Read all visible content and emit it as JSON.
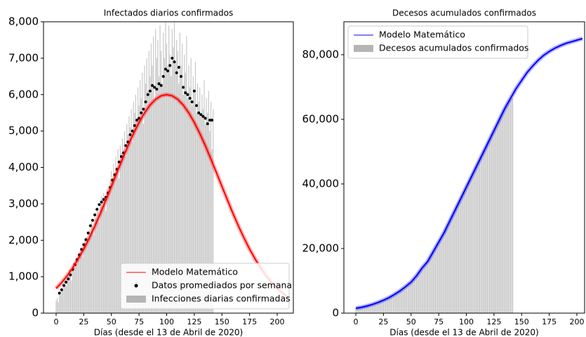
{
  "chart_data": [
    {
      "type": "combo",
      "title": "Infectados diarios confirmados",
      "xlabel": "Días (desde el 13 de Abril de 2020)",
      "xlim": [
        -11.4,
        214.6
      ],
      "xticks": [
        0,
        25,
        50,
        75,
        100,
        125,
        150,
        175,
        200
      ],
      "ylim": [
        0,
        8000
      ],
      "yticks": [
        0,
        {
          "value": 1000,
          "label": "1,000"
        },
        {
          "value": 2000,
          "label": "2,000"
        },
        {
          "value": 3000,
          "label": "3,000"
        },
        {
          "value": 4000,
          "label": "4,000"
        },
        {
          "value": 5000,
          "label": "5,000"
        },
        {
          "value": 6000,
          "label": "6,000"
        },
        {
          "value": 7000,
          "label": "7,000"
        },
        {
          "value": 8000,
          "label": "8,000"
        }
      ],
      "legend": "lower right",
      "series": [
        {
          "name": "Modelo Matemático",
          "kind": "line",
          "color": "#ff0000",
          "x": [
            0,
            5,
            10,
            15,
            20,
            25,
            30,
            35,
            40,
            45,
            50,
            55,
            60,
            65,
            70,
            75,
            80,
            85,
            90,
            95,
            100,
            105,
            110,
            115,
            120,
            125,
            130,
            135,
            140,
            145,
            150,
            155,
            160,
            165,
            170,
            175,
            180,
            185,
            190,
            195,
            200,
            205,
            210
          ],
          "values": [
            678,
            839,
            1026,
            1242,
            1487,
            1760,
            2062,
            2388,
            2736,
            3103,
            3479,
            3860,
            4232,
            4595,
            4931,
            5235,
            5499,
            5713,
            5871,
            5967,
            6000,
            5967,
            5871,
            5713,
            5499,
            5235,
            4931,
            4595,
            4232,
            3860,
            3479,
            3103,
            2736,
            2388,
            2062,
            1760,
            1487,
            1242,
            1026,
            839,
            678,
            542,
            429
          ]
        },
        {
          "name": "Datos promediados por semana",
          "kind": "points",
          "color": "#000000",
          "x": [
            3,
            5,
            7,
            9,
            11,
            13,
            15,
            17,
            19,
            21,
            23,
            25,
            27,
            29,
            31,
            33,
            35,
            37,
            39,
            41,
            43,
            45,
            47,
            49,
            51,
            53,
            55,
            57,
            59,
            61,
            63,
            65,
            67,
            69,
            71,
            73,
            75,
            77,
            79,
            81,
            83,
            85,
            87,
            89,
            91,
            93,
            95,
            97,
            99,
            101,
            103,
            105,
            107,
            109,
            111,
            113,
            115,
            117,
            119,
            121,
            123,
            125,
            127,
            129,
            131,
            133,
            135,
            137,
            139,
            141
          ],
          "values": [
            550,
            640,
            760,
            850,
            940,
            1050,
            1200,
            1330,
            1470,
            1600,
            1750,
            1880,
            2020,
            2200,
            2400,
            2550,
            2700,
            2850,
            2980,
            3050,
            3120,
            3180,
            3300,
            3450,
            3650,
            3800,
            3950,
            4150,
            4300,
            4400,
            4600,
            4700,
            4900,
            5000,
            5150,
            5300,
            5350,
            5500,
            5600,
            5800,
            6000,
            6100,
            6250,
            6200,
            6150,
            6300,
            6250,
            6500,
            6700,
            6650,
            6800,
            7000,
            6900,
            6600,
            6750,
            6500,
            6200,
            6050,
            6000,
            5900,
            5800,
            6100,
            5700,
            5500,
            5450,
            5400,
            5350,
            5200,
            5300,
            5300
          ]
        },
        {
          "name": "Infecciones diarias confirmadas",
          "kind": "bars",
          "color": "#c8c8c8",
          "x": [
            0,
            1,
            2,
            3,
            4,
            5,
            6,
            7,
            8,
            9,
            10,
            11,
            12,
            13,
            14,
            15,
            16,
            17,
            18,
            19,
            20,
            21,
            22,
            23,
            24,
            25,
            26,
            27,
            28,
            29,
            30,
            31,
            32,
            33,
            34,
            35,
            36,
            37,
            38,
            39,
            40,
            41,
            42,
            43,
            44,
            45,
            46,
            47,
            48,
            49,
            50,
            51,
            52,
            53,
            54,
            55,
            56,
            57,
            58,
            59,
            60,
            61,
            62,
            63,
            64,
            65,
            66,
            67,
            68,
            69,
            70,
            71,
            72,
            73,
            74,
            75,
            76,
            77,
            78,
            79,
            80,
            81,
            82,
            83,
            84,
            85,
            86,
            87,
            88,
            89,
            90,
            91,
            92,
            93,
            94,
            95,
            96,
            97,
            98,
            99,
            100,
            101,
            102,
            103,
            104,
            105,
            106,
            107,
            108,
            109,
            110,
            111,
            112,
            113,
            114,
            115,
            116,
            117,
            118,
            119,
            120,
            121,
            122,
            123,
            124,
            125,
            126,
            127,
            128,
            129,
            130,
            131,
            132,
            133,
            134,
            135,
            136,
            137,
            138,
            139,
            140,
            141,
            142
          ],
          "values": [
            350,
            420,
            300,
            600,
            500,
            700,
            650,
            800,
            900,
            750,
            1000,
            950,
            1200,
            1100,
            900,
            1300,
            1400,
            1250,
            1500,
            1350,
            1600,
            1450,
            1700,
            1800,
            1550,
            1900,
            2000,
            1850,
            2100,
            1950,
            2300,
            2200,
            2500,
            2400,
            2150,
            2700,
            2600,
            2900,
            2800,
            2500,
            3000,
            3200,
            2900,
            3300,
            3100,
            2800,
            3400,
            3500,
            3300,
            3700,
            3900,
            3600,
            4100,
            3800,
            4300,
            4000,
            4500,
            3700,
            4600,
            4400,
            4800,
            4500,
            5000,
            4300,
            5200,
            4900,
            5400,
            5100,
            5600,
            4700,
            5800,
            5500,
            6000,
            5300,
            6200,
            5700,
            6400,
            5900,
            6600,
            5200,
            6800,
            6300,
            7000,
            6100,
            7200,
            6500,
            7400,
            6800,
            7600,
            5800,
            7800,
            7000,
            7500,
            6500,
            7900,
            7200,
            6300,
            7700,
            7000,
            8000,
            7400,
            6800,
            7900,
            7100,
            6500,
            7800,
            7300,
            8000,
            6900,
            7500,
            7200,
            6300,
            7700,
            6800,
            7400,
            6000,
            7100,
            6600,
            7600,
            5900,
            6800,
            6200,
            7000,
            5700,
            6500,
            6100,
            6900,
            5500,
            6300,
            5800,
            6200,
            5400,
            6000,
            5600,
            6400,
            5200,
            5900,
            5500,
            6100,
            5000,
            5800,
            4500,
            5600
          ]
        }
      ]
    },
    {
      "type": "combo",
      "title": "Decesos acumulados confirmados",
      "xlabel": "Días (desde el 13 de Abril de 2020)",
      "xlim": [
        -10.8,
        207
      ],
      "xticks": [
        0,
        25,
        50,
        75,
        100,
        125,
        150,
        175,
        200
      ],
      "ylim": [
        0,
        90200
      ],
      "yticks": [
        0,
        {
          "value": 20000,
          "label": "20,000"
        },
        {
          "value": 40000,
          "label": "40,000"
        },
        {
          "value": 60000,
          "label": "60,000"
        },
        {
          "value": 80000,
          "label": "80,000"
        }
      ],
      "legend": "upper left",
      "series": [
        {
          "name": "Modelo Matemático",
          "kind": "line",
          "color": "#0000ff",
          "x": [
            0,
            5,
            10,
            15,
            20,
            25,
            30,
            35,
            40,
            45,
            50,
            55,
            60,
            65,
            70,
            75,
            80,
            85,
            90,
            95,
            100,
            105,
            110,
            115,
            120,
            125,
            130,
            135,
            140,
            145,
            150,
            155,
            160,
            165,
            170,
            175,
            180,
            185,
            190,
            195,
            200,
            205
          ],
          "values": [
            1500,
            1800,
            2200,
            2700,
            3300,
            4000,
            4800,
            5800,
            6900,
            8200,
            9600,
            11600,
            14000,
            16000,
            19000,
            22000,
            25000,
            28500,
            32000,
            35500,
            39000,
            42500,
            46000,
            49500,
            53000,
            56500,
            60000,
            63500,
            66500,
            69500,
            72000,
            74500,
            76500,
            78300,
            79800,
            81000,
            82000,
            82800,
            83500,
            84000,
            84500,
            85000
          ]
        },
        {
          "name": "Decesos acumulados confirmados",
          "kind": "bars",
          "color": "#c8c8c8",
          "x": [
            0,
            1,
            2,
            3,
            4,
            5,
            6,
            7,
            8,
            9,
            10,
            11,
            12,
            13,
            14,
            15,
            16,
            17,
            18,
            19,
            20,
            21,
            22,
            23,
            24,
            25,
            26,
            27,
            28,
            29,
            30,
            31,
            32,
            33,
            34,
            35,
            36,
            37,
            38,
            39,
            40,
            41,
            42,
            43,
            44,
            45,
            46,
            47,
            48,
            49,
            50,
            51,
            52,
            53,
            54,
            55,
            56,
            57,
            58,
            59,
            60,
            61,
            62,
            63,
            64,
            65,
            66,
            67,
            68,
            69,
            70,
            71,
            72,
            73,
            74,
            75,
            76,
            77,
            78,
            79,
            80,
            81,
            82,
            83,
            84,
            85,
            86,
            87,
            88,
            89,
            90,
            91,
            92,
            93,
            94,
            95,
            96,
            97,
            98,
            99,
            100,
            101,
            102,
            103,
            104,
            105,
            106,
            107,
            108,
            109,
            110,
            111,
            112,
            113,
            114,
            115,
            116,
            117,
            118,
            119,
            120,
            121,
            122,
            123,
            124,
            125,
            126,
            127,
            128,
            129,
            130,
            131,
            132,
            133,
            134,
            135,
            136,
            137,
            138,
            139,
            140,
            141,
            142
          ],
          "values": [
            1400,
            1450,
            1500,
            1560,
            1620,
            1700,
            1780,
            1860,
            1940,
            2030,
            2120,
            2210,
            2300,
            2400,
            2500,
            2620,
            2740,
            2860,
            2980,
            3110,
            3240,
            3380,
            3520,
            3660,
            3820,
            3980,
            4140,
            4300,
            4480,
            4660,
            4840,
            5040,
            5240,
            5440,
            5660,
            5880,
            6100,
            6320,
            6560,
            6800,
            7050,
            7300,
            7560,
            7830,
            8100,
            8380,
            8660,
            8950,
            9250,
            9560,
            9880,
            10200,
            10550,
            10900,
            11300,
            11700,
            12100,
            12550,
            13000,
            13500,
            14000,
            14400,
            14900,
            15400,
            15900,
            16400,
            17000,
            17600,
            18200,
            18800,
            19400,
            20000,
            20600,
            21200,
            21800,
            22400,
            23000,
            23600,
            24300,
            25000,
            25700,
            26400,
            27100,
            27800,
            28500,
            29200,
            29900,
            30600,
            31300,
            32000,
            32700,
            33400,
            34100,
            34800,
            35500,
            36200,
            36900,
            37600,
            38300,
            39000,
            39700,
            40400,
            41100,
            41800,
            42500,
            43200,
            43900,
            44600,
            45300,
            46000,
            46700,
            47400,
            48100,
            48800,
            49500,
            50200,
            50900,
            51600,
            52300,
            53000,
            53700,
            54400,
            55100,
            55800,
            56500,
            57200,
            57900,
            58600,
            59300,
            60000,
            60700,
            61400,
            62000,
            62600,
            63200,
            63800,
            64400,
            65000,
            65600,
            66000,
            66200,
            66400,
            66600
          ]
        }
      ]
    }
  ]
}
